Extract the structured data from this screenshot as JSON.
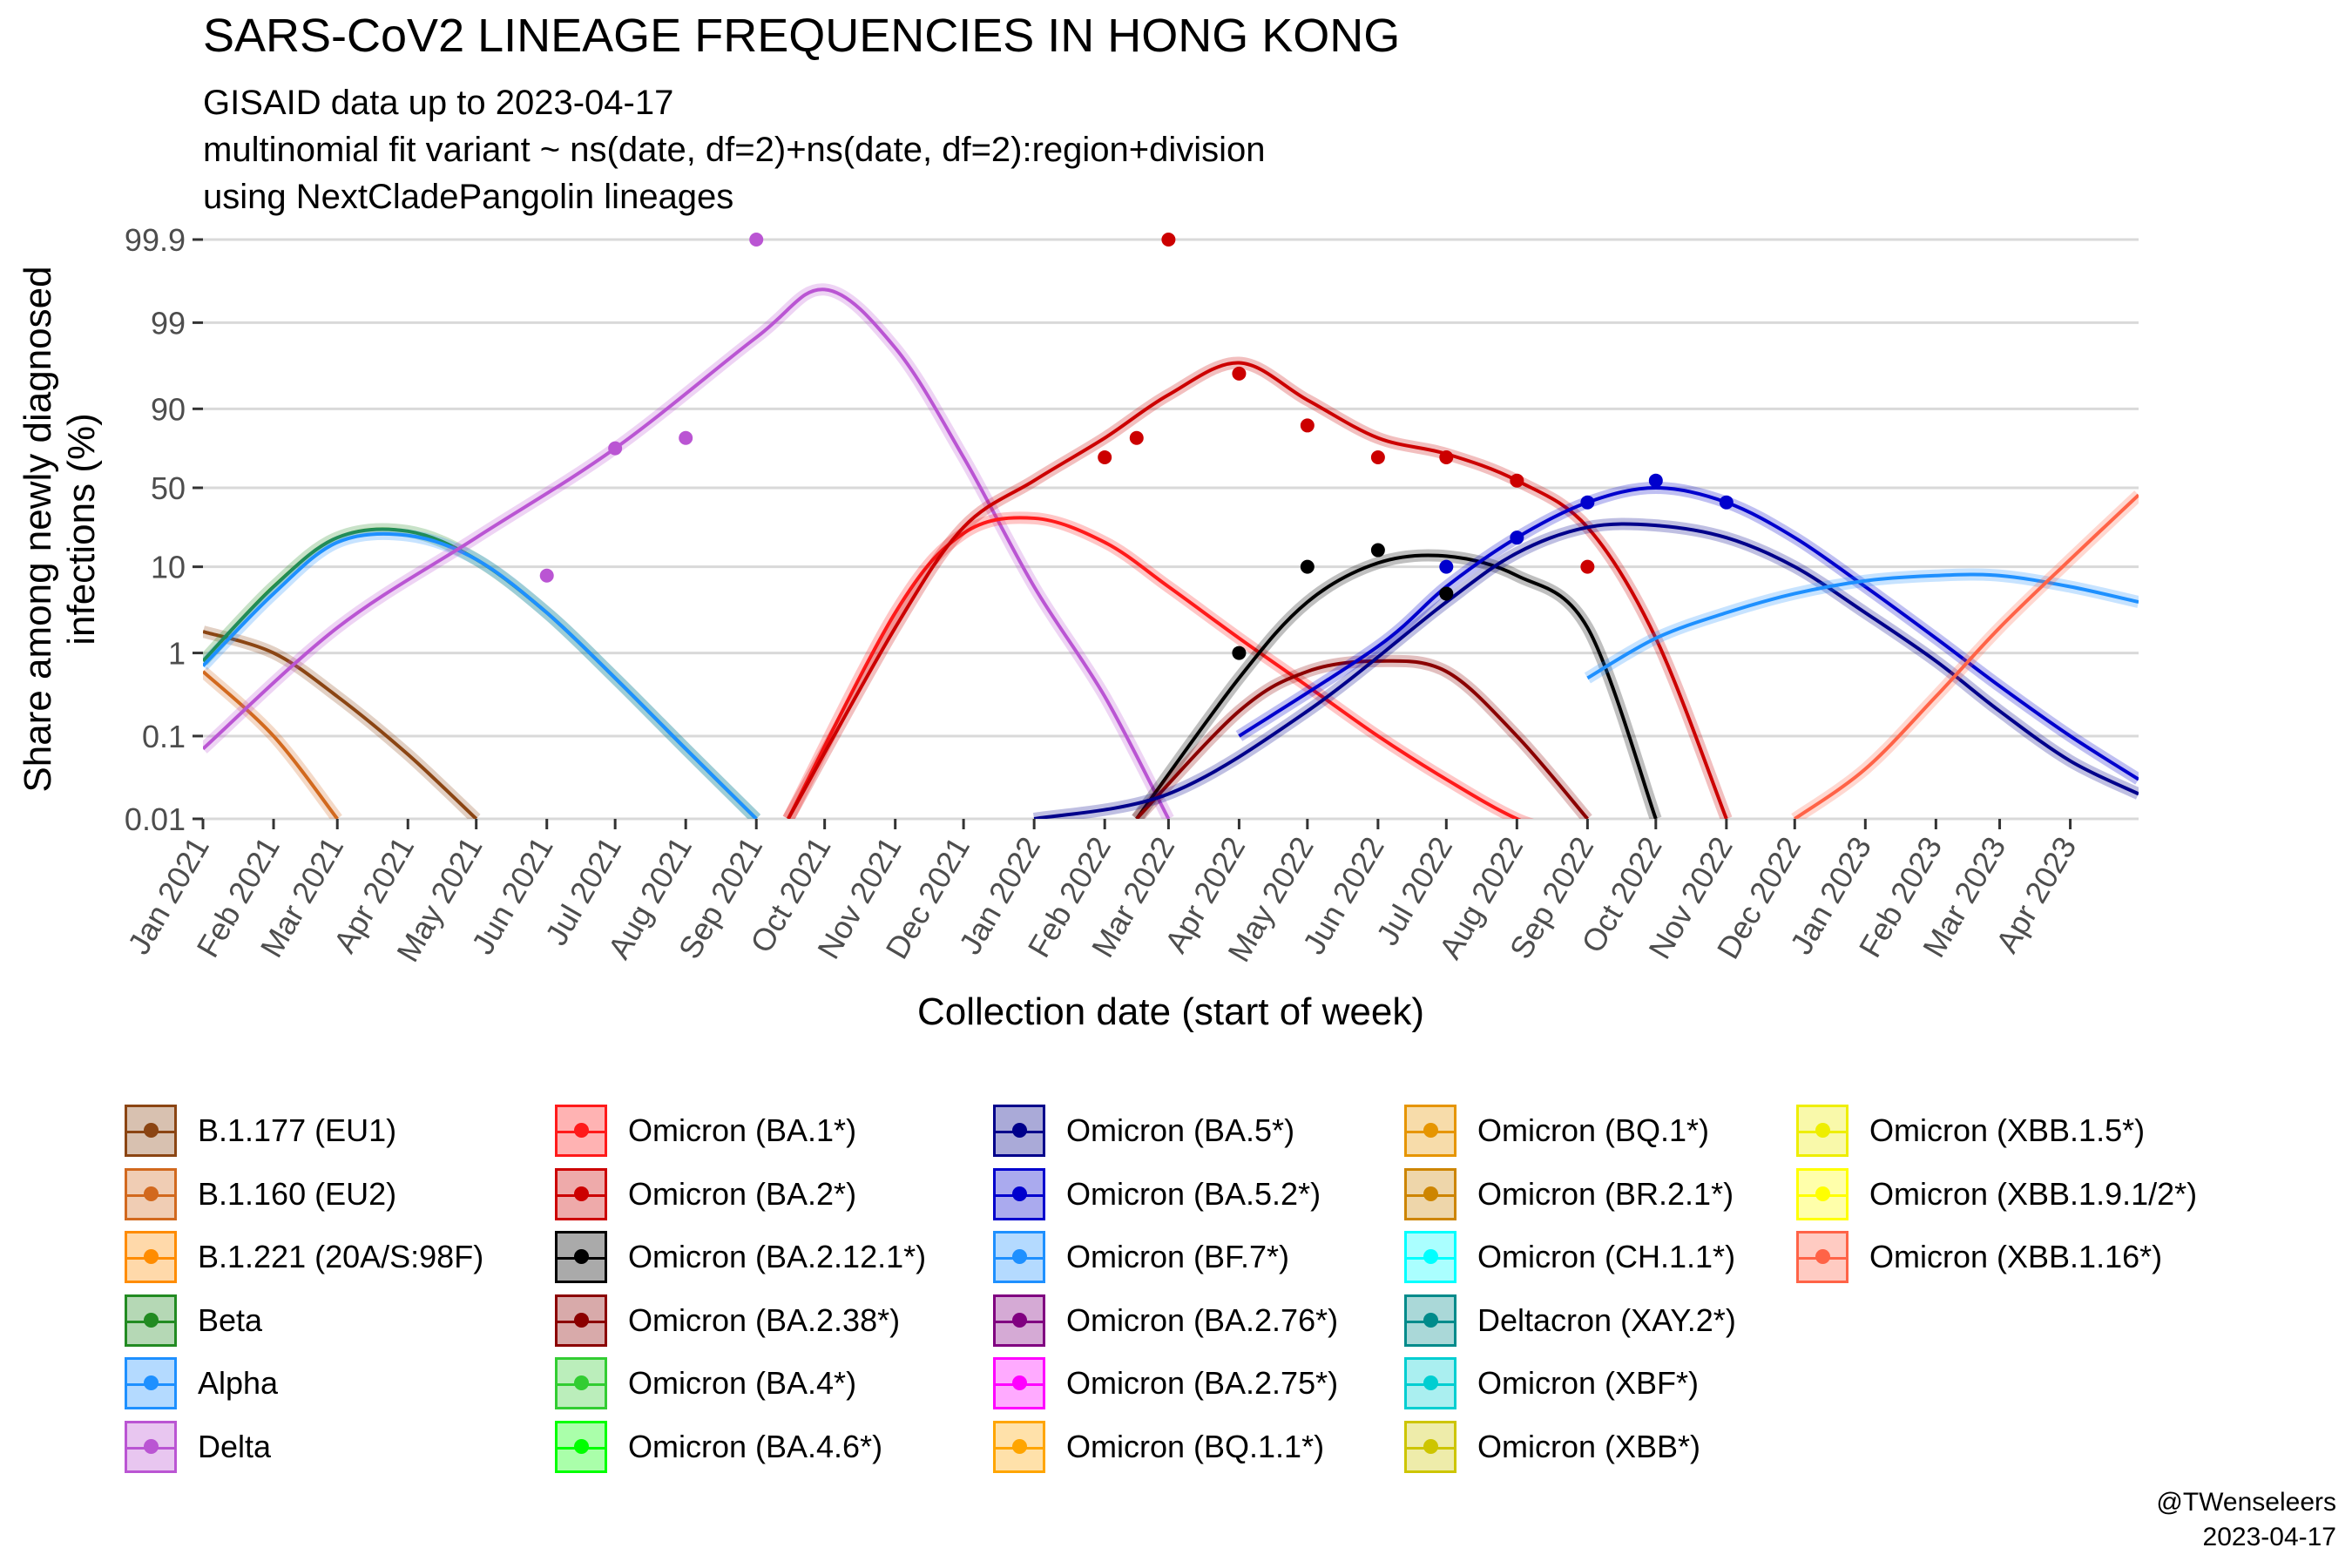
{
  "header": {
    "title": "SARS-CoV2 LINEAGE FREQUENCIES IN HONG KONG",
    "subtitle_lines": [
      "GISAID data up to 2023-04-17",
      "multinomial fit variant ~ ns(date, df=2)+ns(date, df=2):region+division",
      "using NextCladePangolin lineages"
    ]
  },
  "credit": {
    "author": "@TWenseleers",
    "date": "2023-04-17"
  },
  "chart_data": {
    "type": "line",
    "title": "SARS-CoV2 LINEAGE FREQUENCIES IN HONG KONG",
    "xlabel": "Collection date (start of week)",
    "ylabel_lines": [
      "Share among newly diagnosed",
      "infections (%)"
    ],
    "y_scale": "logit",
    "y_ticks": [
      0.01,
      0.1,
      1,
      10,
      50,
      90,
      99,
      99.9
    ],
    "y_tick_labels": [
      "0.01",
      "0.1",
      "1",
      "10",
      "50",
      "90",
      "99",
      "99.9"
    ],
    "x_range": [
      "2021-01-01",
      "2023-05-01"
    ],
    "x_ticks": [
      "2021-01-01",
      "2021-02-01",
      "2021-03-01",
      "2021-04-01",
      "2021-05-01",
      "2021-06-01",
      "2021-07-01",
      "2021-08-01",
      "2021-09-01",
      "2021-10-01",
      "2021-11-01",
      "2021-12-01",
      "2022-01-01",
      "2022-02-01",
      "2022-03-01",
      "2022-04-01",
      "2022-05-01",
      "2022-06-01",
      "2022-07-01",
      "2022-08-01",
      "2022-09-01",
      "2022-10-01",
      "2022-11-01",
      "2022-12-01",
      "2023-01-01",
      "2023-02-01",
      "2023-03-01",
      "2023-04-01"
    ],
    "x_tick_labels": [
      "Jan 2021",
      "Feb 2021",
      "Mar 2021",
      "Apr 2021",
      "May 2021",
      "Jun 2021",
      "Jul 2021",
      "Aug 2021",
      "Sep 2021",
      "Oct 2021",
      "Nov 2021",
      "Dec 2021",
      "Jan 2022",
      "Feb 2022",
      "Mar 2022",
      "Apr 2022",
      "May 2022",
      "Jun 2022",
      "Jul 2022",
      "Aug 2022",
      "Sep 2022",
      "Oct 2022",
      "Nov 2022",
      "Dec 2022",
      "Jan 2023",
      "Feb 2023",
      "Mar 2023",
      "Apr 2023"
    ],
    "grid": true,
    "legend_position": "bottom",
    "series": [
      {
        "name": "B.1.177 (EU1)",
        "color": "#8B4513",
        "x": [
          "2021-01-01",
          "2021-02-01",
          "2021-03-01",
          "2021-04-01",
          "2021-05-01"
        ],
        "y": [
          1.8,
          1.0,
          0.3,
          0.06,
          0.01
        ]
      },
      {
        "name": "B.1.160 (EU2)",
        "color": "#D2691E",
        "x": [
          "2021-01-01",
          "2021-02-01",
          "2021-03-01"
        ],
        "y": [
          0.6,
          0.1,
          0.01
        ]
      },
      {
        "name": "B.1.221 (20A/S:98F)",
        "color": "#FF8C00",
        "x": [],
        "y": []
      },
      {
        "name": "Beta",
        "color": "#228B22",
        "x": [
          "2021-01-01",
          "2021-02-01",
          "2021-03-01",
          "2021-04-01",
          "2021-05-01",
          "2021-06-01",
          "2021-07-01",
          "2021-08-01",
          "2021-09-01"
        ],
        "y": [
          0.8,
          6,
          20,
          23,
          12,
          3,
          0.5,
          0.07,
          0.01
        ]
      },
      {
        "name": "Alpha",
        "color": "#1E90FF",
        "x": [
          "2021-01-01",
          "2021-02-01",
          "2021-03-01",
          "2021-04-01",
          "2021-05-01",
          "2021-06-01",
          "2021-07-01",
          "2021-08-01",
          "2021-09-01"
        ],
        "y": [
          0.7,
          5,
          18,
          21,
          12,
          3,
          0.5,
          0.07,
          0.01
        ]
      },
      {
        "name": "Delta",
        "color": "#BA55D3",
        "x": [
          "2021-01-01",
          "2021-03-01",
          "2021-05-01",
          "2021-07-01",
          "2021-09-01",
          "2021-10-01",
          "2021-11-01",
          "2021-12-01",
          "2022-01-01",
          "2022-02-01",
          "2022-03-01"
        ],
        "y": [
          0.07,
          2,
          20,
          75,
          98.5,
          99.6,
          98,
          70,
          6,
          0.3,
          0.01
        ]
      },
      {
        "name": "Omicron (BA.1*)",
        "color": "#FF1A1A",
        "x": [
          "2021-09-15",
          "2021-11-01",
          "2021-12-01",
          "2022-01-01",
          "2022-02-01",
          "2022-03-01",
          "2022-04-01",
          "2022-05-01",
          "2022-06-01",
          "2022-07-01",
          "2022-08-01",
          "2022-09-01",
          "2022-10-01"
        ],
        "y": [
          0.01,
          3,
          22,
          30,
          18,
          6,
          1.5,
          0.4,
          0.1,
          0.03,
          0.01,
          0.005,
          0.001
        ]
      },
      {
        "name": "Omicron (BA.2*)",
        "color": "#CC0000",
        "x": [
          "2021-09-15",
          "2021-11-01",
          "2021-12-01",
          "2022-01-01",
          "2022-02-01",
          "2022-03-01",
          "2022-04-01",
          "2022-05-01",
          "2022-06-01",
          "2022-07-01",
          "2022-08-01",
          "2022-09-01",
          "2022-10-01",
          "2022-11-01"
        ],
        "y": [
          0.01,
          2,
          25,
          55,
          80,
          93,
          97,
          92,
          80,
          72,
          55,
          25,
          1.5,
          0.01
        ]
      },
      {
        "name": "Omicron (BA.2.12.1*)",
        "color": "#000000",
        "x": [
          "2022-02-15",
          "2022-04-01",
          "2022-05-01",
          "2022-06-01",
          "2022-07-01",
          "2022-08-01",
          "2022-09-01",
          "2022-10-01"
        ],
        "y": [
          0.01,
          0.5,
          4,
          11,
          13,
          8,
          2,
          0.01
        ]
      },
      {
        "name": "Omicron (BA.2.38*)",
        "color": "#8B0000",
        "x": [
          "2022-02-15",
          "2022-04-01",
          "2022-05-01",
          "2022-06-01",
          "2022-07-01",
          "2022-08-01",
          "2022-09-01"
        ],
        "y": [
          0.01,
          0.2,
          0.6,
          0.8,
          0.6,
          0.1,
          0.01
        ]
      },
      {
        "name": "Omicron (BA.5*)",
        "color": "#00008B",
        "x": [
          "2022-01-01",
          "2022-03-01",
          "2022-05-01",
          "2022-07-01",
          "2022-08-01",
          "2022-09-01",
          "2022-10-01",
          "2022-11-01",
          "2022-12-01",
          "2023-01-01",
          "2023-02-01",
          "2023-03-01",
          "2023-04-01",
          "2023-05-01"
        ],
        "y": [
          0.01,
          0.02,
          0.2,
          4,
          14,
          25,
          26,
          20,
          10,
          3,
          0.8,
          0.2,
          0.05,
          0.02
        ]
      },
      {
        "name": "Omicron (BA.5.2*)",
        "color": "#0000CD",
        "x": [
          "2022-04-01",
          "2022-06-01",
          "2022-07-01",
          "2022-08-01",
          "2022-09-01",
          "2022-10-01",
          "2022-11-01",
          "2022-12-01",
          "2023-01-01",
          "2023-02-01",
          "2023-03-01",
          "2023-04-01",
          "2023-05-01"
        ],
        "y": [
          0.1,
          1.2,
          6,
          20,
          40,
          50,
          40,
          20,
          6,
          1.5,
          0.4,
          0.1,
          0.03
        ]
      },
      {
        "name": "Omicron (BF.7*)",
        "color": "#1E90FF",
        "x": [
          "2022-09-01",
          "2022-10-01",
          "2022-11-01",
          "2022-12-01",
          "2023-01-01",
          "2023-02-01",
          "2023-03-01",
          "2023-04-01",
          "2023-05-01"
        ],
        "y": [
          0.5,
          1.5,
          3,
          5,
          7,
          8,
          8,
          6,
          4
        ]
      },
      {
        "name": "Omicron (XBB.1.16*)",
        "color": "#FF6347",
        "x": [
          "2022-12-01",
          "2023-01-01",
          "2023-02-01",
          "2023-03-01",
          "2023-04-01",
          "2023-05-01"
        ],
        "y": [
          0.01,
          0.04,
          0.3,
          2,
          12,
          45
        ]
      }
    ],
    "points_note": "Weekly observed shares drawn as dots",
    "points": [
      {
        "series": "Delta",
        "x": [
          "2021-06-01",
          "2021-07-01",
          "2021-08-01",
          "2021-09-01"
        ],
        "y": [
          8,
          75,
          80,
          99.9
        ]
      },
      {
        "series": "Omicron (BA.2*)",
        "x": [
          "2022-02-01",
          "2022-02-15",
          "2022-03-01",
          "2022-04-01",
          "2022-05-01",
          "2022-06-01",
          "2022-07-01",
          "2022-08-01",
          "2022-09-01"
        ],
        "y": [
          70,
          80,
          99.9,
          96,
          85,
          70,
          70,
          55,
          10
        ]
      },
      {
        "series": "Omicron (BA.2.12.1*)",
        "x": [
          "2022-04-01",
          "2022-05-01",
          "2022-06-01",
          "2022-07-01"
        ],
        "y": [
          1,
          10,
          15,
          5
        ]
      },
      {
        "series": "Omicron (BA.5.2*)",
        "x": [
          "2022-07-01",
          "2022-08-01",
          "2022-09-01",
          "2022-10-01",
          "2022-11-01"
        ],
        "y": [
          10,
          20,
          40,
          55,
          40
        ]
      }
    ]
  },
  "legend": {
    "columns": [
      [
        {
          "label": "B.1.177 (EU1)",
          "color": "#8B4513"
        },
        {
          "label": "B.1.160 (EU2)",
          "color": "#D2691E"
        },
        {
          "label": "B.1.221 (20A/S:98F)",
          "color": "#FF8C00"
        },
        {
          "label": "Beta",
          "color": "#228B22"
        },
        {
          "label": "Alpha",
          "color": "#1E90FF"
        },
        {
          "label": "Delta",
          "color": "#BA55D3"
        }
      ],
      [
        {
          "label": "Omicron (BA.1*)",
          "color": "#FF1A1A"
        },
        {
          "label": "Omicron (BA.2*)",
          "color": "#CC0000"
        },
        {
          "label": "Omicron (BA.2.12.1*)",
          "color": "#000000"
        },
        {
          "label": "Omicron (BA.2.38*)",
          "color": "#8B0000"
        },
        {
          "label": "Omicron (BA.4*)",
          "color": "#32CD32"
        },
        {
          "label": "Omicron (BA.4.6*)",
          "color": "#00FF00"
        }
      ],
      [
        {
          "label": "Omicron (BA.5*)",
          "color": "#00008B"
        },
        {
          "label": "Omicron (BA.5.2*)",
          "color": "#0000CD"
        },
        {
          "label": "Omicron (BF.7*)",
          "color": "#1E90FF"
        },
        {
          "label": "Omicron (BA.2.76*)",
          "color": "#800080"
        },
        {
          "label": "Omicron (BA.2.75*)",
          "color": "#FF00FF"
        },
        {
          "label": "Omicron (BQ.1.1*)",
          "color": "#FFA500"
        }
      ],
      [
        {
          "label": "Omicron (BQ.1*)",
          "color": "#E69500"
        },
        {
          "label": "Omicron (BR.2.1*)",
          "color": "#CD8500"
        },
        {
          "label": "Omicron (CH.1.1*)",
          "color": "#00FFFF"
        },
        {
          "label": "Deltacron (XAY.2*)",
          "color": "#008B8B"
        },
        {
          "label": "Omicron (XBF*)",
          "color": "#00CED1"
        },
        {
          "label": "Omicron (XBB*)",
          "color": "#CDC500"
        }
      ],
      [
        {
          "label": "Omicron (XBB.1.5*)",
          "color": "#EEEE00"
        },
        {
          "label": "Omicron (XBB.1.9.1/2*)",
          "color": "#FFFF00"
        },
        {
          "label": "Omicron (XBB.1.16*)",
          "color": "#FF6347"
        }
      ]
    ]
  }
}
